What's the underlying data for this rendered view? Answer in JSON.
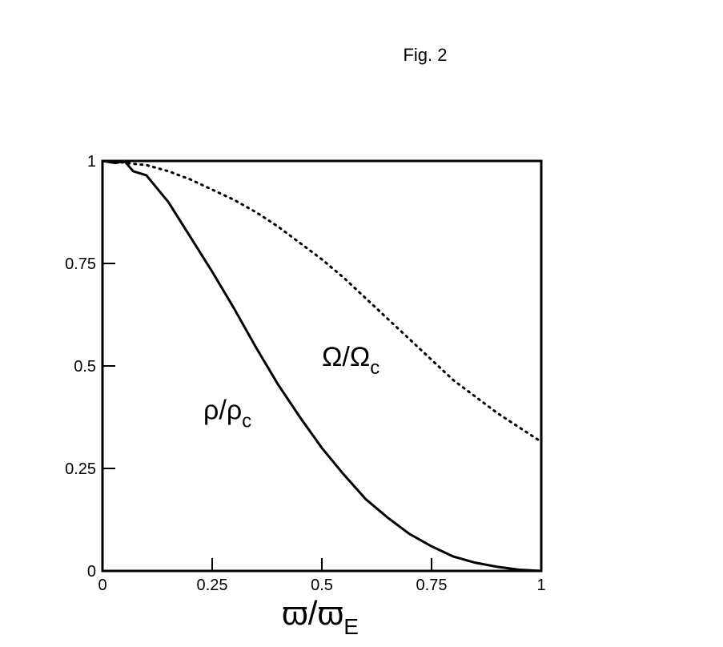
{
  "chart_data": {
    "type": "line",
    "title": "Fig. 2",
    "x_label": {
      "text": "ϖ/ϖ",
      "sub": "E"
    },
    "x": [
      0,
      0.03,
      0.05,
      0.07,
      0.1,
      0.15,
      0.2,
      0.25,
      0.3,
      0.35,
      0.4,
      0.45,
      0.5,
      0.55,
      0.6,
      0.65,
      0.7,
      0.75,
      0.8,
      0.85,
      0.9,
      0.95,
      1
    ],
    "series": [
      {
        "name": "ρ/ρc",
        "color": "#000000",
        "dash": "solid",
        "values": [
          1,
          0.995,
          1.0,
          0.975,
          0.965,
          0.9,
          0.815,
          0.73,
          0.64,
          0.545,
          0.455,
          0.375,
          0.3,
          0.235,
          0.175,
          0.13,
          0.09,
          0.06,
          0.035,
          0.02,
          0.01,
          0.003,
          0
        ]
      },
      {
        "name": "Ω/Ωc",
        "color": "#000000",
        "dash": "dotted",
        "values": [
          1,
          0.998,
          0.996,
          0.993,
          0.99,
          0.975,
          0.955,
          0.93,
          0.905,
          0.875,
          0.84,
          0.8,
          0.76,
          0.715,
          0.665,
          0.615,
          0.565,
          0.515,
          0.465,
          0.425,
          0.385,
          0.35,
          0.315
        ]
      }
    ],
    "annotations": [
      {
        "text": "Ω/Ω",
        "sub": "c",
        "x": 0.5,
        "y": 0.5
      },
      {
        "text": "ρ/ρ",
        "sub": "c",
        "x": 0.23,
        "y": 0.37
      }
    ],
    "xlim": [
      0,
      1
    ],
    "ylim": [
      0,
      1
    ],
    "xticks": [
      0,
      0.25,
      0.5,
      0.75,
      1
    ],
    "yticks": [
      0,
      0.25,
      0.5,
      0.75,
      1
    ]
  }
}
